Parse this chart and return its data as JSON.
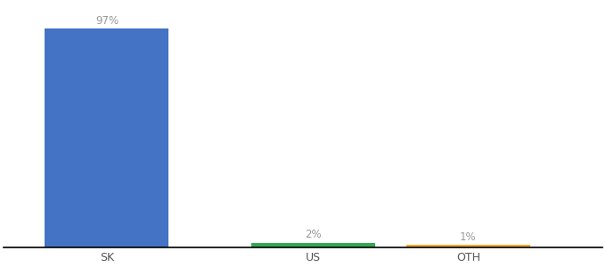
{
  "categories": [
    "SK",
    "US",
    "OTH"
  ],
  "values": [
    97,
    2,
    1
  ],
  "bar_colors": [
    "#4472c4",
    "#33a853",
    "#f9a825"
  ],
  "labels": [
    "97%",
    "2%",
    "1%"
  ],
  "label_color": "#999999",
  "ylim": [
    0,
    108
  ],
  "background_color": "#ffffff",
  "label_fontsize": 8.5,
  "tick_fontsize": 9,
  "bar_positions": [
    1,
    3,
    4.5
  ],
  "bar_width": 1.2,
  "xlim": [
    0,
    5.8
  ]
}
